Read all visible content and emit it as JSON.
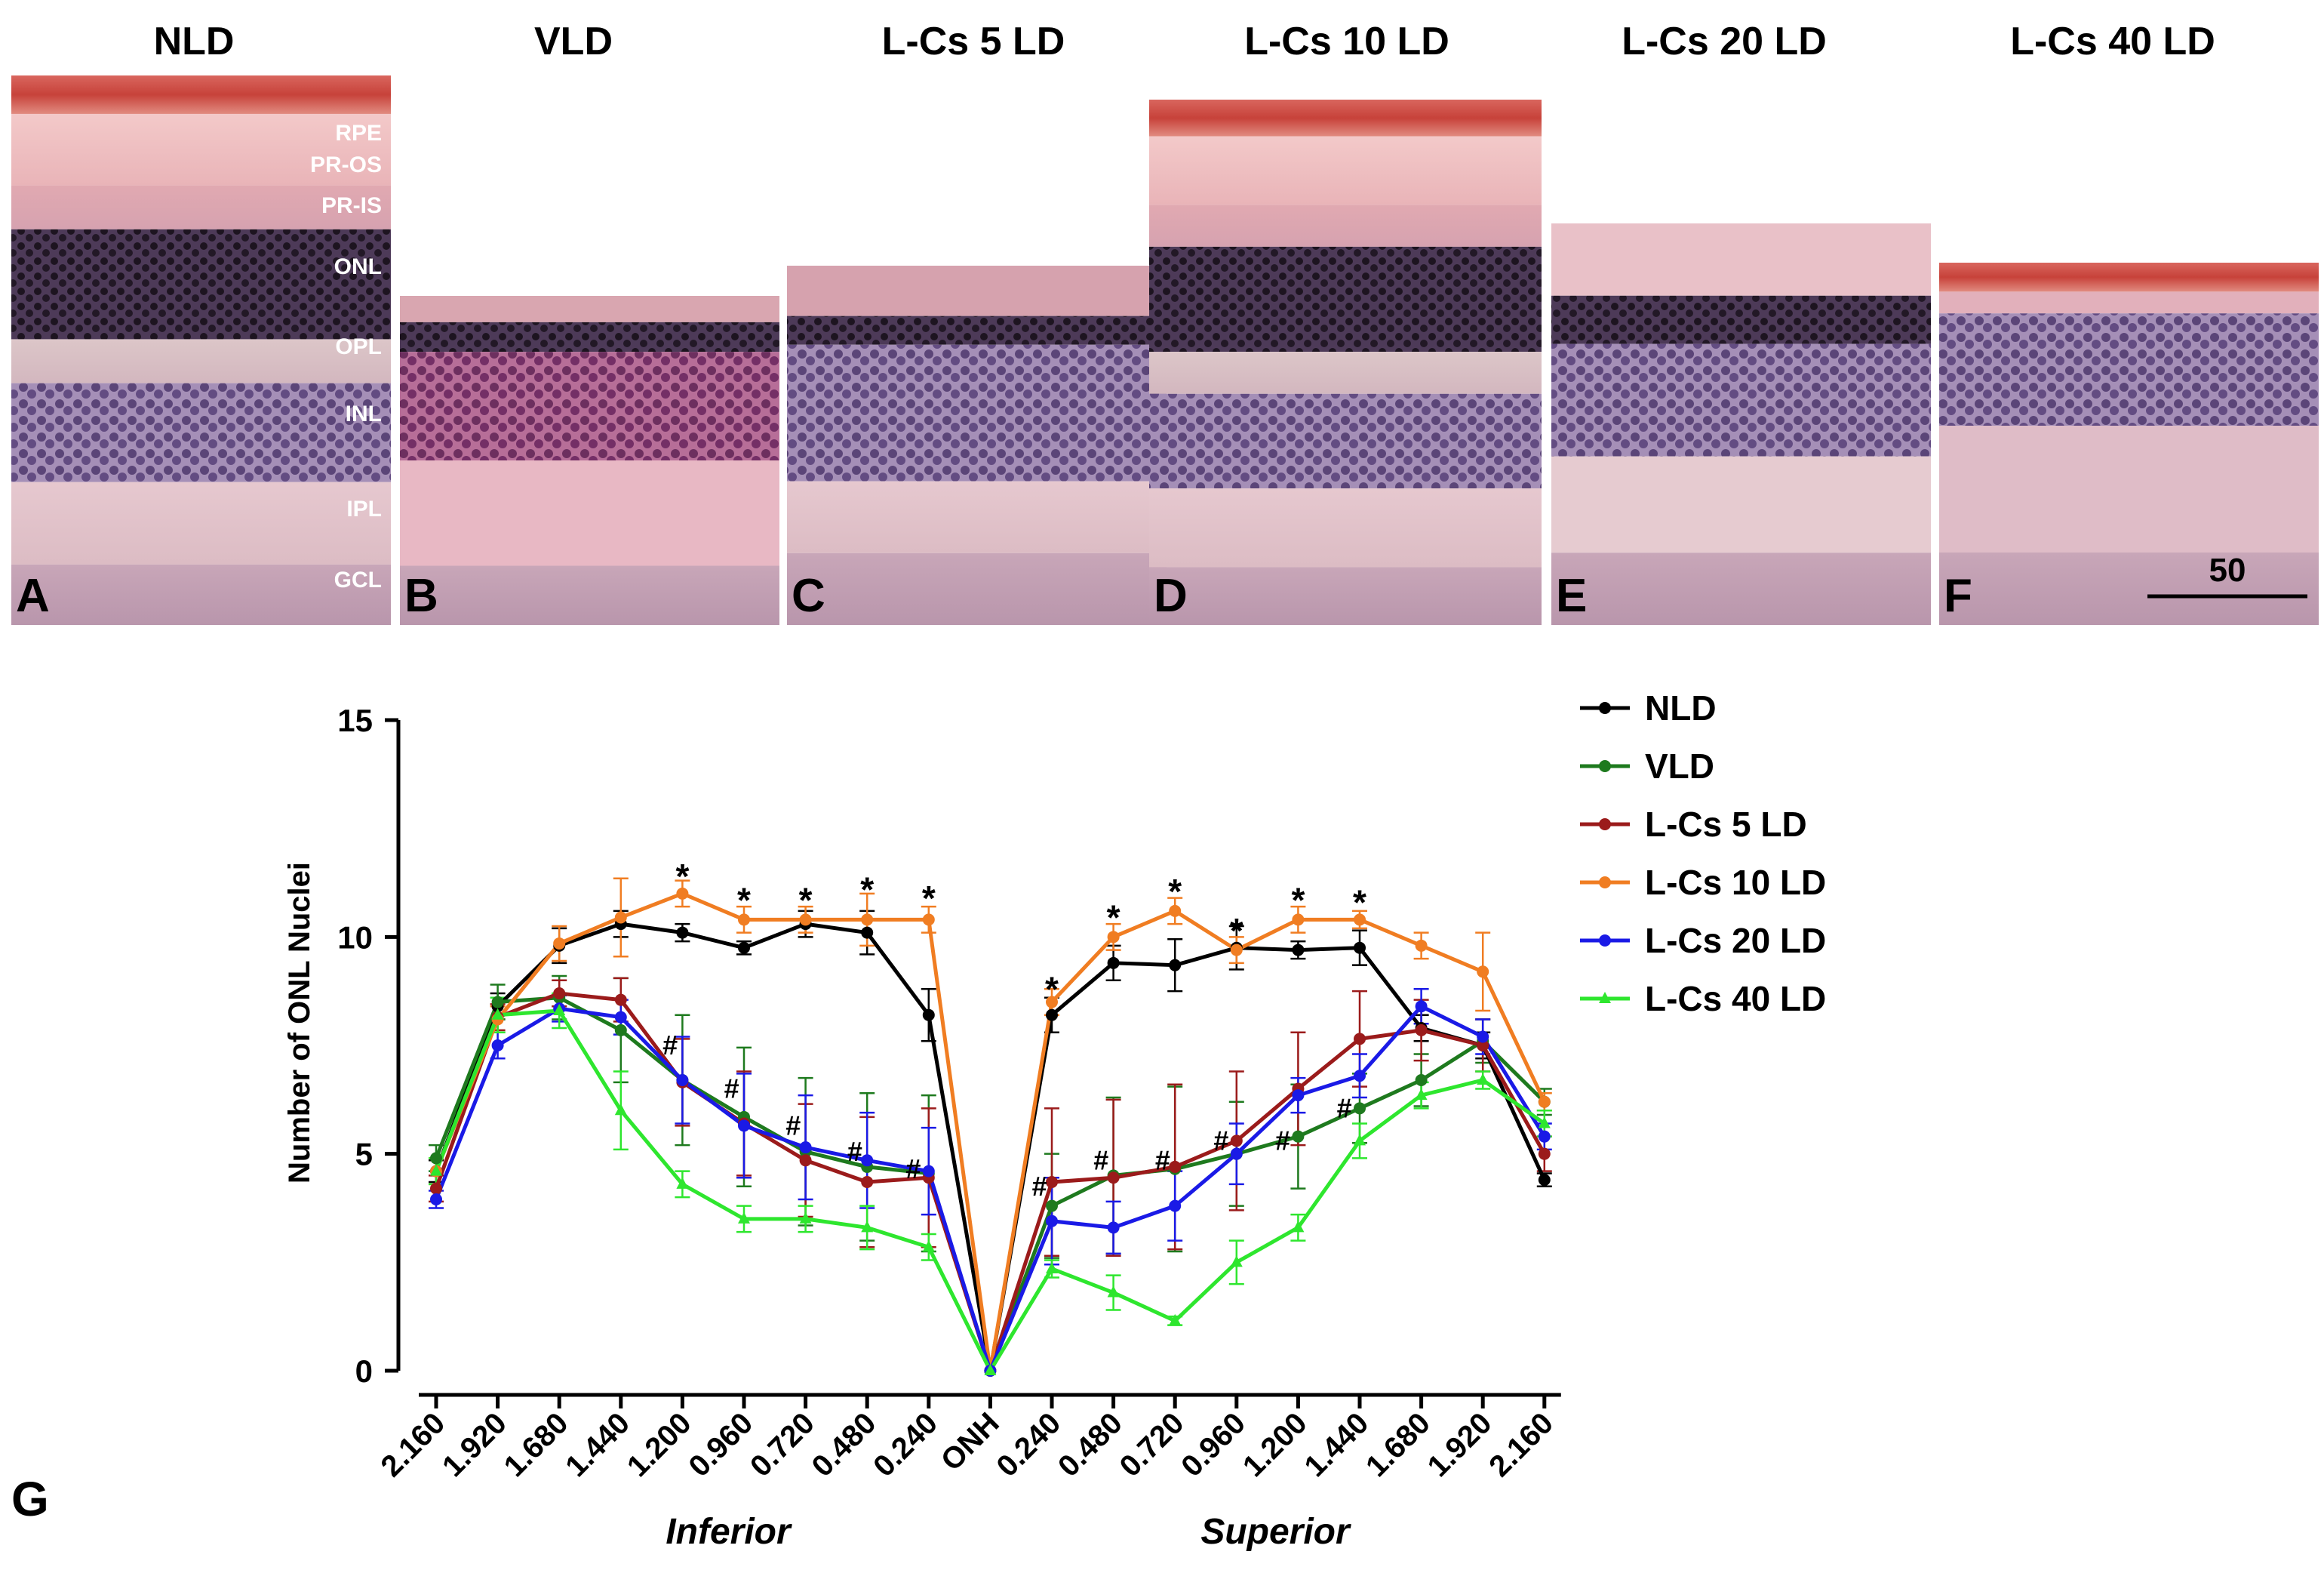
{
  "panels": [
    {
      "title": "NLD",
      "letter": "A"
    },
    {
      "title": "VLD",
      "letter": "B"
    },
    {
      "title": "L-Cs 5 LD",
      "letter": "C"
    },
    {
      "title": "L-Cs 10 LD",
      "letter": "D"
    },
    {
      "title": "L-Cs 20 LD",
      "letter": "E"
    },
    {
      "title": "L-Cs 40 LD",
      "letter": "F"
    }
  ],
  "layer_labels": [
    "RPE",
    "PR-OS",
    "PR-IS",
    "ONL",
    "OPL",
    "INL",
    "IPL",
    "GCL"
  ],
  "scale_bar_label": "50",
  "chart_panel_letter": "G",
  "colors": {
    "NLD": "#000000",
    "VLD": "#1e7a1e",
    "L-Cs 5 LD": "#9b1b1b",
    "L-Cs 10 LD": "#f07d22",
    "L-Cs 20 LD": "#1a1ae6",
    "L-Cs 40 LD": "#2ee62e"
  },
  "chart_data": {
    "type": "line",
    "ylabel": "Number of ONL Nuclei",
    "ylim": [
      0,
      15
    ],
    "yticks": [
      0,
      5,
      10,
      15
    ],
    "categories": [
      "2.160",
      "1.920",
      "1.680",
      "1.440",
      "1.200",
      "0.960",
      "0.720",
      "0.480",
      "0.240",
      "ONH",
      "0.240",
      "0.480",
      "0.720",
      "0.960",
      "1.200",
      "1.440",
      "1.680",
      "1.920",
      "2.160"
    ],
    "group_labels": [
      "Inferior",
      "Superior"
    ],
    "series": [
      {
        "name": "NLD",
        "marker": "circle",
        "values": [
          4.6,
          8.4,
          9.8,
          10.3,
          10.1,
          9.75,
          10.3,
          10.1,
          8.2,
          0,
          8.2,
          9.4,
          9.35,
          9.75,
          9.7,
          9.75,
          7.9,
          7.5,
          4.4
        ],
        "errors": [
          0.25,
          0.3,
          0.4,
          0.3,
          0.2,
          0.15,
          0.3,
          0.5,
          0.6,
          0,
          0.4,
          0.4,
          0.6,
          0.5,
          0.2,
          0.4,
          0.3,
          0.3,
          0.15
        ]
      },
      {
        "name": "VLD",
        "marker": "circle",
        "values": [
          4.9,
          8.5,
          8.6,
          7.85,
          6.7,
          5.85,
          5.05,
          4.7,
          4.55,
          0,
          3.8,
          4.5,
          4.65,
          5.0,
          5.4,
          6.05,
          6.7,
          7.6,
          6.2
        ],
        "errors": [
          0.3,
          0.4,
          0.5,
          1.2,
          1.5,
          1.6,
          1.7,
          1.7,
          1.8,
          0,
          1.2,
          1.8,
          1.9,
          1.2,
          1.2,
          0.8,
          0.6,
          0.5,
          0.3
        ]
      },
      {
        "name": "L-Cs 5 LD",
        "marker": "circle",
        "values": [
          4.2,
          8.15,
          8.7,
          8.55,
          6.65,
          5.7,
          4.85,
          4.35,
          4.45,
          0,
          4.35,
          4.45,
          4.7,
          5.3,
          6.5,
          7.65,
          7.85,
          7.5,
          5.0
        ],
        "errors": [
          0.3,
          0.3,
          0.3,
          0.5,
          1.0,
          1.2,
          1.3,
          1.5,
          1.6,
          0,
          1.7,
          1.8,
          1.9,
          1.6,
          1.3,
          1.1,
          0.7,
          0.6,
          0.4
        ]
      },
      {
        "name": "L-Cs 10 LD",
        "marker": "circle",
        "values": [
          4.6,
          8.1,
          9.85,
          10.45,
          11.0,
          10.4,
          10.4,
          10.4,
          10.4,
          0,
          8.5,
          10.0,
          10.6,
          9.7,
          10.4,
          10.4,
          9.8,
          9.2,
          6.2
        ],
        "errors": [
          0.3,
          0.3,
          0.4,
          0.9,
          0.3,
          0.3,
          0.3,
          0.6,
          0.3,
          0,
          0.3,
          0.3,
          0.3,
          0.3,
          0.3,
          0.2,
          0.3,
          0.9,
          0.2
        ]
      },
      {
        "name": "L-Cs 20 LD",
        "marker": "circle",
        "values": [
          3.95,
          7.5,
          8.35,
          8.15,
          6.7,
          5.65,
          5.15,
          4.85,
          4.6,
          0,
          3.45,
          3.3,
          3.8,
          5.0,
          6.35,
          6.8,
          8.4,
          7.7,
          5.4
        ],
        "errors": [
          0.2,
          0.3,
          0.3,
          0.4,
          1.0,
          1.2,
          1.2,
          1.1,
          1.0,
          0,
          1.0,
          0.6,
          0.8,
          0.7,
          0.4,
          0.5,
          0.4,
          0.4,
          0.3
        ]
      },
      {
        "name": "L-Cs 40 LD",
        "marker": "triangle",
        "values": [
          4.6,
          8.2,
          8.3,
          6.0,
          4.3,
          3.5,
          3.5,
          3.3,
          2.85,
          0,
          2.35,
          1.8,
          1.15,
          2.5,
          3.3,
          5.3,
          6.35,
          6.7,
          5.7
        ],
        "errors": [
          0.3,
          0.4,
          0.4,
          0.9,
          0.3,
          0.3,
          0.3,
          0.5,
          0.3,
          0,
          0.2,
          0.4,
          0.1,
          0.5,
          0.3,
          0.4,
          0.3,
          0.2,
          0.3
        ]
      }
    ],
    "annotations": [
      {
        "category_index": 4,
        "value": 11.5,
        "text": "*"
      },
      {
        "category_index": 5,
        "value": 10.95,
        "text": "*"
      },
      {
        "category_index": 6,
        "value": 10.95,
        "text": "*"
      },
      {
        "category_index": 7,
        "value": 11.2,
        "text": "*"
      },
      {
        "category_index": 8,
        "value": 11.0,
        "text": "*"
      },
      {
        "category_index": 10,
        "value": 8.9,
        "text": "*"
      },
      {
        "category_index": 11,
        "value": 10.55,
        "text": "*"
      },
      {
        "category_index": 12,
        "value": 11.15,
        "text": "*"
      },
      {
        "category_index": 13,
        "value": 10.25,
        "text": "*"
      },
      {
        "category_index": 14,
        "value": 10.95,
        "text": "*"
      },
      {
        "category_index": 15,
        "value": 10.9,
        "text": "*"
      },
      {
        "category_index": 3.8,
        "value": 7.5,
        "text": "#"
      },
      {
        "category_index": 4.8,
        "value": 6.5,
        "text": "#"
      },
      {
        "category_index": 5.8,
        "value": 5.65,
        "text": "#"
      },
      {
        "category_index": 6.8,
        "value": 5.05,
        "text": "#"
      },
      {
        "category_index": 7.75,
        "value": 4.65,
        "text": "#"
      },
      {
        "category_index": 9.8,
        "value": 4.25,
        "text": "#"
      },
      {
        "category_index": 10.8,
        "value": 4.85,
        "text": "#"
      },
      {
        "category_index": 11.8,
        "value": 4.85,
        "text": "#"
      },
      {
        "category_index": 12.75,
        "value": 5.3,
        "text": "#"
      },
      {
        "category_index": 13.75,
        "value": 5.3,
        "text": "#"
      },
      {
        "category_index": 14.75,
        "value": 6.05,
        "text": "#"
      }
    ]
  }
}
